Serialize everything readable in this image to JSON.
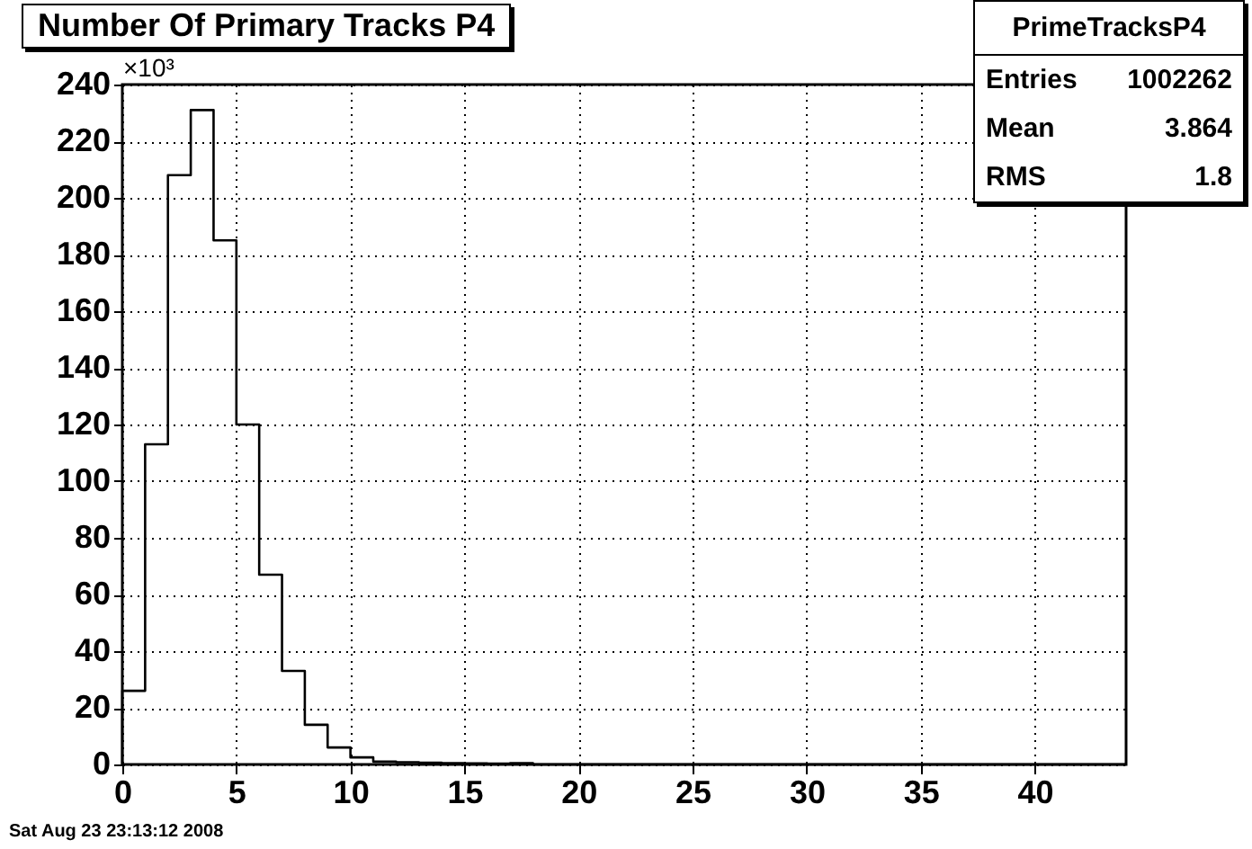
{
  "chart_data": {
    "type": "histogram",
    "title": "Number Of Primary Tracks P4",
    "ylabel": "×10³",
    "bins": [
      0,
      1,
      2,
      3,
      4,
      5,
      6,
      7,
      8,
      9,
      10,
      11,
      12,
      13,
      14,
      15,
      16,
      17,
      18,
      19,
      20,
      21,
      22,
      23,
      24,
      25,
      26,
      27,
      28,
      29,
      30,
      31,
      32,
      33,
      34,
      35,
      36,
      37,
      38,
      39,
      40,
      41,
      42,
      43,
      44
    ],
    "values": [
      26,
      113,
      208,
      231,
      185,
      120,
      67,
      33,
      14,
      6,
      2.5,
      1,
      0.8,
      0.6,
      0.5,
      0.4,
      0.3,
      0.5,
      0,
      0,
      0,
      0,
      0,
      0,
      0,
      0,
      0,
      0,
      0,
      0,
      0,
      0,
      0,
      0,
      0,
      0,
      0,
      0,
      0,
      0,
      0,
      0,
      0,
      0
    ],
    "color": "#000000",
    "xlim": [
      0,
      44
    ],
    "xticks": [
      0,
      5,
      10,
      15,
      20,
      25,
      30,
      35,
      40
    ],
    "ylim": [
      0,
      240
    ],
    "yticks": [
      0,
      20,
      40,
      60,
      80,
      100,
      120,
      140,
      160,
      180,
      200,
      220,
      240
    ],
    "grid": true,
    "annotations": [
      "PrimeTracksP4",
      "Entries",
      "1002262",
      "Mean",
      "3.864",
      "RMS",
      "1.8",
      "Sat Aug 23 23:13:12 2008"
    ]
  }
}
